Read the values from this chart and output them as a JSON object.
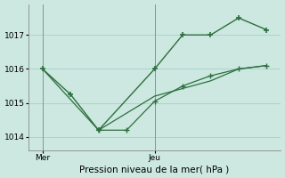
{
  "background_color": "#cce8e0",
  "grid_color": "#aad4cc",
  "line_color": "#2d6e3e",
  "title": "Pression niveau de la mer( hPa )",
  "xtick_positions": [
    0.5,
    4.5
  ],
  "xtick_labels": [
    "Mer",
    "Jeu"
  ],
  "yticks": [
    1014,
    1015,
    1016,
    1017
  ],
  "ylim": [
    1013.6,
    1017.9
  ],
  "xlim": [
    0,
    9
  ],
  "vline_positions": [
    0.5,
    4.5
  ],
  "line1_x": [
    0.5,
    1.5,
    2.5,
    4.5,
    5.5,
    6.5,
    7.5,
    8.5
  ],
  "line1_y": [
    1016.0,
    1015.25,
    1014.2,
    1016.0,
    1017.0,
    1017.0,
    1017.5,
    1017.15
  ],
  "line2_x": [
    2.5,
    3.5,
    4.5,
    5.5,
    6.5,
    7.5,
    8.5
  ],
  "line2_y": [
    1014.2,
    1014.2,
    1015.05,
    1015.5,
    1015.8,
    1016.0,
    1016.1
  ],
  "line3_x": [
    0.5,
    2.5,
    4.5,
    6.5,
    7.5,
    8.5
  ],
  "line3_y": [
    1016.0,
    1014.2,
    1015.2,
    1015.65,
    1016.0,
    1016.1
  ]
}
